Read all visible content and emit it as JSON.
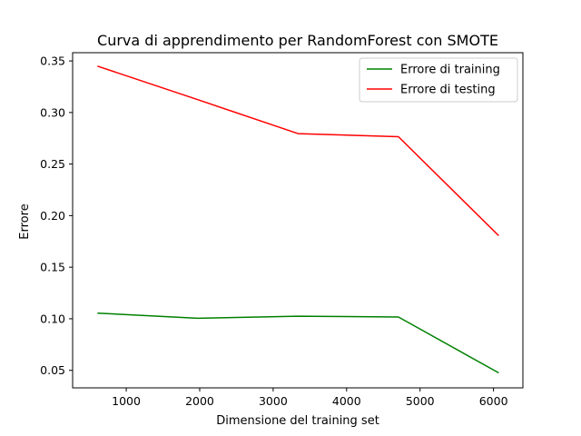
{
  "chart_data": {
    "type": "line",
    "title": "Curva di apprendimento per RandomForest con SMOTE",
    "xlabel": "Dimensione del training set",
    "ylabel": "Errore",
    "xlim": [
      270,
      6400
    ],
    "ylim": [
      0.033,
      0.358
    ],
    "x_ticks": [
      1000,
      2000,
      3000,
      4000,
      5000,
      6000
    ],
    "y_ticks": [
      0.05,
      0.1,
      0.15,
      0.2,
      0.25,
      0.3,
      0.35
    ],
    "y_tick_labels": [
      "0.05",
      "0.10",
      "0.15",
      "0.20",
      "0.25",
      "0.30",
      "0.35"
    ],
    "grid": false,
    "legend_position": "top-right",
    "x": [
      607,
      1973,
      3339,
      4705,
      6071
    ],
    "series": [
      {
        "name": "Errore di training",
        "color": "#008000",
        "values": [
          0.1055,
          0.1005,
          0.1025,
          0.1017,
          0.0475
        ]
      },
      {
        "name": "Errore di testing",
        "color": "#ff0000",
        "values": [
          0.345,
          0.3125,
          0.2795,
          0.2765,
          0.1805
        ]
      }
    ]
  }
}
